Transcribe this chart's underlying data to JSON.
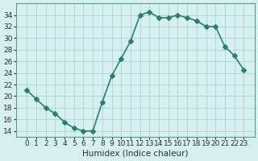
{
  "x": [
    0,
    1,
    2,
    3,
    4,
    5,
    6,
    7,
    8,
    9,
    10,
    11,
    12,
    13,
    14,
    15,
    16,
    17,
    18,
    19,
    20,
    21,
    22,
    23
  ],
  "y": [
    21,
    19.5,
    18,
    17,
    15.5,
    14.5,
    14,
    14,
    19,
    23.5,
    26.5,
    29.5,
    34,
    34.5,
    33.5,
    33.5,
    34,
    33.5,
    33,
    32,
    32,
    28.5,
    27,
    24.5
  ],
  "line_color": "#2e7d6e",
  "marker": "D",
  "markersize": 3,
  "linewidth": 1.2,
  "bg_color": "#d6f0f0",
  "grid_color": "#b0d8d8",
  "xlabel": "Humidex (Indice chaleur)",
  "ylim": [
    13,
    36
  ],
  "yticks": [
    14,
    16,
    18,
    20,
    22,
    24,
    26,
    28,
    30,
    32,
    34
  ],
  "xticks": [
    0,
    1,
    2,
    3,
    4,
    5,
    6,
    7,
    8,
    9,
    10,
    11,
    12,
    13,
    14,
    15,
    16,
    17,
    18,
    19,
    20,
    21,
    22,
    23
  ],
  "xlabel_fontsize": 7.5,
  "tick_fontsize": 6.5
}
